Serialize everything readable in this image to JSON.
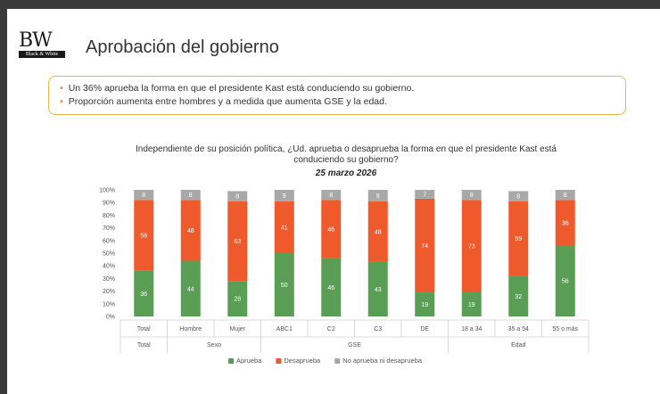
{
  "logo": {
    "main": "BW",
    "sub": "Black & White"
  },
  "page_title": "Aprobación del gobierno",
  "bullets": [
    "Un 36% aprueba la forma en que el presidente Kast está conduciendo su gobierno.",
    "Proporción aumenta entre hombres y a medida que aumenta GSE y la edad."
  ],
  "colors": {
    "aprueba": "#5a9e55",
    "desaprueba": "#ef5a2c",
    "neutral": "#a8a8a8",
    "accent": "#f0b54a"
  },
  "chart_data": {
    "type": "bar",
    "stacked": true,
    "question_lines": [
      "Independiente de su posición política, ¿Ud. aprueba o desaprueba la forma en que el presidente Kast está",
      "conduciendo su gobierno?"
    ],
    "date": "25 marzo 2026",
    "categories": [
      "Total",
      "Hombre",
      "Mujer",
      "ABC1",
      "C2",
      "C3",
      "DE",
      "18 a 34",
      "35 a 54",
      "55 o más"
    ],
    "groups": [
      {
        "label": "Total",
        "count": 1
      },
      {
        "label": "Sexo",
        "count": 2
      },
      {
        "label": "GSE",
        "count": 4
      },
      {
        "label": "Edad",
        "count": 3
      }
    ],
    "series": [
      {
        "name": "Aprueba",
        "values": [
          36,
          44,
          28,
          50,
          46,
          43,
          19,
          19,
          32,
          56
        ]
      },
      {
        "name": "Desaprueba",
        "values": [
          56,
          48,
          63,
          41,
          46,
          48,
          74,
          73,
          59,
          36
        ]
      },
      {
        "name": "No aprueba ni desaprueba",
        "values": [
          8,
          8,
          8,
          9,
          8,
          9,
          7,
          8,
          8,
          8
        ]
      }
    ],
    "ylim": [
      0,
      100
    ],
    "yticks": [
      "0%",
      "10%",
      "20%",
      "30%",
      "40%",
      "50%",
      "60%",
      "70%",
      "80%",
      "90%",
      "100%"
    ],
    "legend_position": "bottom"
  }
}
